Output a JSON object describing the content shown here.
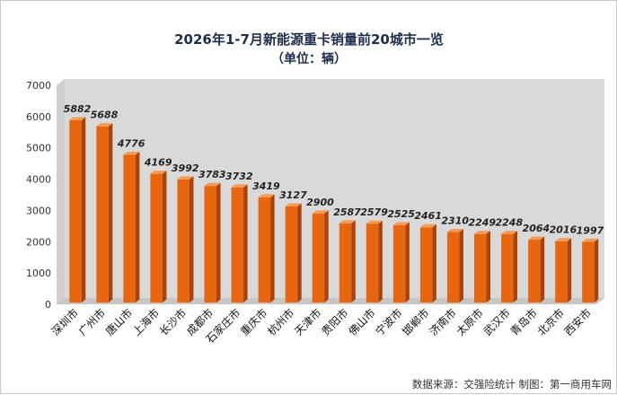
{
  "chart_data": {
    "type": "bar",
    "title": "2026年1-7月新能源重卡销量前20城市一览",
    "subtitle": "（单位：辆）",
    "xlabel": "",
    "ylabel": "",
    "ylim": [
      0,
      7000
    ],
    "yticks": [
      0,
      1000,
      2000,
      3000,
      4000,
      5000,
      6000,
      7000
    ],
    "grid": false,
    "legend": "none",
    "categories": [
      "深圳市",
      "广州市",
      "唐山市",
      "上海市",
      "长沙市",
      "成都市",
      "石家庄市",
      "重庆市",
      "杭州市",
      "天津市",
      "贵阳市",
      "佛山市",
      "宁波市",
      "邯郸市",
      "济南市",
      "太原市",
      "武汉市",
      "青岛市",
      "北京市",
      "西安市"
    ],
    "values": [
      5882,
      5688,
      4776,
      4169,
      3992,
      3783,
      3732,
      3419,
      3127,
      2900,
      2587,
      2579,
      2525,
      2461,
      2310,
      2249,
      2248,
      2064,
      2016,
      1997
    ],
    "source_note": "数据来源：交强险统计  制图：第一商用车网",
    "colors": {
      "bar_front": "#e8660f",
      "bar_side": "#a8440a",
      "bar_top": "#f49a55",
      "wall": "#d9d9d9",
      "floor": "#c6c6c6"
    }
  }
}
